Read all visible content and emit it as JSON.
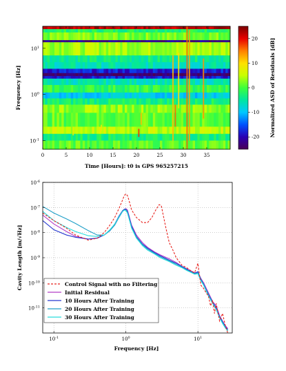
{
  "chart_data": [
    {
      "type": "heatmap",
      "xlabel": "Time [Hours]: t0 is GPS 965257215",
      "ylabel": "Frequency [Hz]",
      "colorbar_label": "Normalized ASD of Residuals [dB]",
      "x_ticks": [
        "0",
        "5",
        "10",
        "15",
        "20",
        "25",
        "30",
        "35"
      ],
      "x_range": [
        0,
        40
      ],
      "y_scale": "log",
      "y_ticks": [
        {
          "base": "10",
          "exp": "1",
          "value": 10
        },
        {
          "base": "10",
          "exp": "0",
          "value": 1
        },
        {
          "base": "10",
          "exp": "-1",
          "value": 0.1
        }
      ],
      "y_range": [
        0.065,
        30
      ],
      "colorbar_ticks": [
        "20",
        "10",
        "0",
        "-10",
        "-20"
      ],
      "colorbar_range": [
        -25,
        25
      ],
      "colormap": [
        "#4b0056",
        "#2a00b4",
        "#0052ff",
        "#00c8ff",
        "#00e6a0",
        "#3cff3c",
        "#c8ff00",
        "#ffe000",
        "#ff8000",
        "#e80000",
        "#7a0000"
      ],
      "bands": [
        {
          "f_low": 26,
          "f_high": 30,
          "level_db": 22
        },
        {
          "f_low": 22,
          "f_high": 26,
          "level_db": -2
        },
        {
          "f_low": 15,
          "f_high": 22,
          "level_db": 2
        },
        {
          "f_low": 13.5,
          "f_high": 15,
          "level_db": -22
        },
        {
          "f_low": 7,
          "f_high": 13.5,
          "level_db": 4
        },
        {
          "f_low": 5,
          "f_high": 7,
          "level_db": -4
        },
        {
          "f_low": 3.6,
          "f_high": 5,
          "level_db": -6
        },
        {
          "f_low": 2.9,
          "f_high": 3.6,
          "level_db": -18
        },
        {
          "f_low": 2.5,
          "f_high": 2.9,
          "level_db": -24
        },
        {
          "f_low": 2.2,
          "f_high": 2.5,
          "level_db": -18
        },
        {
          "f_low": 1.6,
          "f_high": 2.2,
          "level_db": -6
        },
        {
          "f_low": 1.1,
          "f_high": 1.6,
          "level_db": -1
        },
        {
          "f_low": 0.82,
          "f_high": 1.1,
          "level_db": -9
        },
        {
          "f_low": 0.6,
          "f_high": 0.82,
          "level_db": -3
        },
        {
          "f_low": 0.4,
          "f_high": 0.6,
          "level_db": 3
        },
        {
          "f_low": 0.2,
          "f_high": 0.4,
          "level_db": 1
        },
        {
          "f_low": 0.14,
          "f_high": 0.2,
          "level_db": 5
        },
        {
          "f_low": 0.1,
          "f_high": 0.14,
          "level_db": -3
        },
        {
          "f_low": 0.065,
          "f_high": 0.1,
          "level_db": 1
        }
      ],
      "transients": [
        {
          "t": 20.5,
          "f_low": 0.12,
          "f_high": 0.18,
          "level_db": 18
        },
        {
          "t": 21.0,
          "f_low": 0.22,
          "f_high": 0.4,
          "level_db": 12
        },
        {
          "t": 27.8,
          "f_low": 0.1,
          "f_high": 7,
          "level_db": 12
        },
        {
          "t": 28.3,
          "f_low": 0.2,
          "f_high": 0.6,
          "level_db": 16
        },
        {
          "t": 29.0,
          "f_low": 0.5,
          "f_high": 8,
          "level_db": 10
        },
        {
          "t": 30.8,
          "f_low": 0.065,
          "f_high": 30,
          "level_db": 16
        },
        {
          "t": 31.3,
          "f_low": 0.1,
          "f_high": 25,
          "level_db": 13
        },
        {
          "t": 34.3,
          "f_low": 0.3,
          "f_high": 6,
          "level_db": 14
        },
        {
          "t": 6.5,
          "f_low": 0.13,
          "f_high": 0.2,
          "level_db": 8
        },
        {
          "t": 12.5,
          "f_low": 0.16,
          "f_high": 0.22,
          "level_db": 8
        }
      ]
    },
    {
      "type": "line",
      "xlabel": "Frequency [Hz]",
      "ylabel": "Cavity Length [m/√Hz]",
      "x_scale": "log",
      "y_scale": "log",
      "xlim": [
        0.07,
        30
      ],
      "ylim": [
        1e-12,
        1e-06
      ],
      "x_ticks": [
        {
          "base": "10",
          "exp": "-1",
          "value": 0.1
        },
        {
          "base": "10",
          "exp": "0",
          "value": 1
        },
        {
          "base": "10",
          "exp": "1",
          "value": 10
        }
      ],
      "y_ticks": [
        {
          "base": "10",
          "exp": "-6",
          "value": 1e-06
        },
        {
          "base": "10",
          "exp": "-7",
          "value": 1e-07
        },
        {
          "base": "10",
          "exp": "-8",
          "value": 1e-08
        },
        {
          "base": "10",
          "exp": "-9",
          "value": 1e-09
        },
        {
          "base": "10",
          "exp": "-10",
          "value": 1e-10
        },
        {
          "base": "10",
          "exp": "-11",
          "value": 1e-11
        }
      ],
      "grid": "dotted",
      "legend_position": "bottom-left",
      "series": [
        {
          "name": "Control Signal with no Filtering",
          "color": "#e8231e",
          "dash": "dashed",
          "x": [
            0.07,
            0.1,
            0.15,
            0.2,
            0.3,
            0.4,
            0.5,
            0.6,
            0.7,
            0.8,
            0.9,
            0.95,
            1.0,
            1.05,
            1.1,
            1.2,
            1.4,
            1.7,
            2.0,
            2.3,
            2.6,
            2.9,
            3.1,
            3.3,
            3.6,
            4.0,
            4.5,
            5.0,
            6.0,
            7.0,
            8.0,
            9.0,
            10.0,
            11.0,
            12.0,
            13.0,
            14.0,
            15.0,
            16.0,
            17.0,
            18.0,
            20.0,
            22.0,
            24.0,
            26.0
          ],
          "y": [
            6e-08,
            3e-08,
            1.5e-08,
            8e-09,
            5e-09,
            6e-09,
            1e-08,
            2e-08,
            4e-08,
            9e-08,
            2e-07,
            3e-07,
            3.5e-07,
            3e-07,
            2e-07,
            8e-08,
            4e-08,
            2.5e-08,
            2.5e-08,
            4e-08,
            8e-08,
            1.3e-07,
            1.2e-07,
            5e-08,
            1.5e-08,
            4e-09,
            2e-09,
            1e-09,
            5e-10,
            4e-10,
            3e-10,
            2.5e-10,
            6e-10,
            8e-11,
            6e-11,
            4e-11,
            3e-11,
            1.2e-11,
            2e-11,
            6e-12,
            1.5e-11,
            3e-12,
            6e-12,
            2e-12,
            1e-12
          ]
        },
        {
          "name": "Initial Residual",
          "color": "#b23cc8",
          "dash": "solid",
          "x": [
            0.07,
            0.1,
            0.15,
            0.2,
            0.3,
            0.4,
            0.5,
            0.6,
            0.7,
            0.8,
            0.9,
            0.95,
            1.0,
            1.05,
            1.1,
            1.2,
            1.4,
            1.7,
            2.0,
            2.5,
            3.0,
            4.0,
            5.0,
            6.0,
            7.0,
            8.0,
            9.0,
            10.0,
            11.0,
            12.0,
            14.0,
            16.0,
            18.0,
            20.0,
            22.0,
            24.0,
            26.0
          ],
          "y": [
            5e-08,
            2.2e-08,
            1.1e-08,
            7e-09,
            5.5e-09,
            6e-09,
            8e-09,
            1.2e-08,
            2e-08,
            4e-08,
            7e-08,
            8.5e-08,
            9e-08,
            8e-08,
            5e-08,
            2e-08,
            8e-09,
            4e-09,
            2.6e-09,
            1.7e-09,
            1.3e-09,
            9e-10,
            6.5e-10,
            4.5e-10,
            3.6e-10,
            3e-10,
            2.5e-10,
            2.6e-10,
            1.5e-10,
            1e-10,
            4e-11,
            1.8e-11,
            1.2e-11,
            5e-12,
            3e-12,
            2e-12,
            1.5e-12
          ]
        },
        {
          "name": "10 Hours After Training",
          "color": "#2638d0",
          "dash": "solid",
          "x": [
            0.07,
            0.1,
            0.15,
            0.2,
            0.3,
            0.4,
            0.5,
            0.6,
            0.7,
            0.8,
            0.9,
            0.95,
            1.0,
            1.05,
            1.1,
            1.2,
            1.4,
            1.7,
            2.0,
            2.5,
            3.0,
            4.0,
            5.0,
            6.0,
            7.0,
            8.0,
            9.0,
            10.0,
            11.0,
            12.0,
            14.0,
            16.0,
            18.0,
            20.0,
            22.0,
            24.0,
            26.0
          ],
          "y": [
            3e-08,
            1.3e-08,
            8e-09,
            6.5e-09,
            5.5e-09,
            6e-09,
            8e-09,
            1.2e-08,
            2.2e-08,
            4.5e-08,
            7.5e-08,
            8.5e-08,
            8.5e-08,
            7e-08,
            4.5e-08,
            1.8e-08,
            7e-09,
            3.5e-09,
            2.4e-09,
            1.6e-09,
            1.2e-09,
            8e-10,
            6e-10,
            4.5e-10,
            3.5e-10,
            2.8e-10,
            2.4e-10,
            2.8e-10,
            1.4e-10,
            9e-11,
            3.5e-11,
            1.7e-11,
            1e-11,
            4.5e-12,
            2.8e-12,
            1.8e-12,
            1.4e-12
          ]
        },
        {
          "name": "20 Hours After Training",
          "color": "#1e9fc8",
          "dash": "solid",
          "x": [
            0.07,
            0.1,
            0.15,
            0.2,
            0.3,
            0.4,
            0.5,
            0.6,
            0.7,
            0.8,
            0.9,
            0.95,
            1.0,
            1.05,
            1.1,
            1.2,
            1.4,
            1.7,
            2.0,
            2.5,
            3.0,
            4.0,
            5.0,
            6.0,
            7.0,
            8.0,
            9.0,
            10.0,
            11.0,
            12.0,
            14.0,
            16.0,
            18.0,
            20.0,
            22.0,
            24.0,
            26.0
          ],
          "y": [
            1.1e-07,
            6e-08,
            3.5e-08,
            2.3e-08,
            1.2e-08,
            8e-09,
            8e-09,
            1.2e-08,
            2e-08,
            4e-08,
            7e-08,
            8e-08,
            8e-08,
            6.5e-08,
            4e-08,
            1.6e-08,
            6.5e-09,
            3.3e-09,
            2.2e-09,
            1.5e-09,
            1.1e-09,
            7.5e-10,
            5.5e-10,
            4.2e-10,
            3.3e-10,
            2.7e-10,
            2.3e-10,
            2.5e-10,
            1.3e-10,
            8.5e-11,
            3.3e-11,
            1.6e-11,
            9e-12,
            4.2e-12,
            2.6e-12,
            1.7e-12,
            1.3e-12
          ]
        },
        {
          "name": "30 Hours After Training",
          "color": "#28dcdc",
          "dash": "solid",
          "x": [
            0.07,
            0.1,
            0.15,
            0.2,
            0.3,
            0.4,
            0.5,
            0.6,
            0.7,
            0.8,
            0.9,
            0.95,
            1.0,
            1.05,
            1.1,
            1.2,
            1.4,
            1.7,
            2.0,
            2.5,
            3.0,
            4.0,
            5.0,
            6.0,
            7.0,
            8.0,
            9.0,
            10.0,
            11.0,
            12.0,
            14.0,
            16.0,
            18.0,
            20.0,
            22.0,
            24.0,
            26.0
          ],
          "y": [
            7e-08,
            3e-08,
            1.6e-08,
            1.1e-08,
            7.5e-09,
            7e-09,
            8e-09,
            1.3e-08,
            2.2e-08,
            4.2e-08,
            7e-08,
            7.8e-08,
            7.5e-08,
            6e-08,
            3.8e-08,
            1.5e-08,
            6e-09,
            3e-09,
            2e-09,
            1.4e-09,
            1e-09,
            7e-10,
            5e-10,
            4e-10,
            3.1e-10,
            2.6e-10,
            2.2e-10,
            2.3e-10,
            1.2e-10,
            8e-11,
            3e-11,
            1.5e-11,
            8.5e-12,
            4e-12,
            2.4e-12,
            1.6e-12,
            1.2e-12
          ]
        }
      ]
    }
  ]
}
